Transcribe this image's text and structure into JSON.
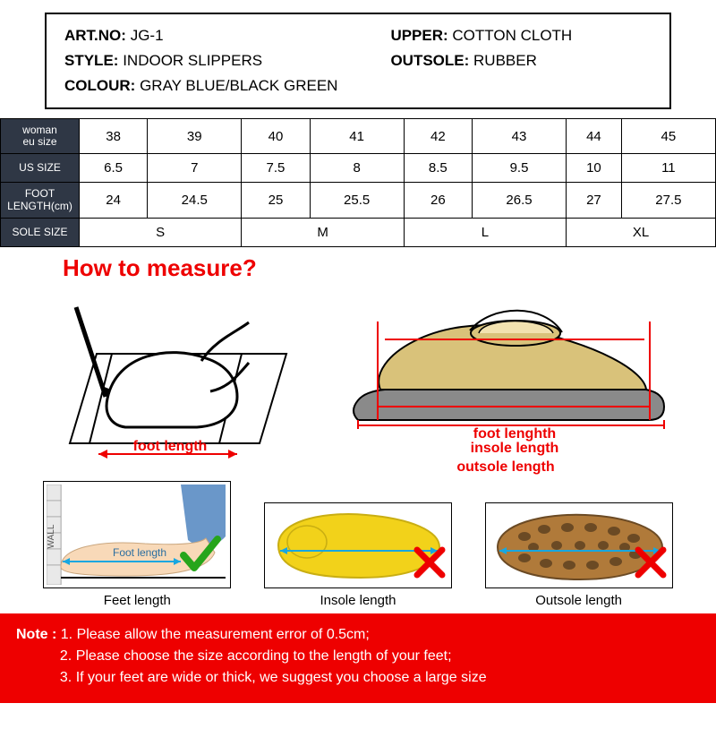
{
  "info": {
    "art_no_label": "ART.NO:",
    "art_no": "JG-1",
    "upper_label": "UPPER:",
    "upper": "COTTON CLOTH",
    "style_label": "STYLE:",
    "style": "INDOOR SLIPPERS",
    "outsole_label": "OUTSOLE:",
    "outsole": "RUBBER",
    "colour_label": "COLOUR:",
    "colour": "GRAY BLUE/BLACK GREEN"
  },
  "size_table": {
    "header_bg": "#2f3745",
    "header_color": "#ffffff",
    "rows": [
      {
        "label": "woman\neu size",
        "cells": [
          "38",
          "39",
          "40",
          "41",
          "42",
          "43",
          "44",
          "45"
        ]
      },
      {
        "label": "US SIZE",
        "cells": [
          "6.5",
          "7",
          "7.5",
          "8",
          "8.5",
          "9.5",
          "10",
          "11"
        ]
      },
      {
        "label": "FOOT\nLENGTH(cm)",
        "cells": [
          "24",
          "24.5",
          "25",
          "25.5",
          "26",
          "26.5",
          "27",
          "27.5"
        ]
      },
      {
        "label": "SOLE SIZE",
        "cells": [
          "S",
          "S",
          "M",
          "M",
          "L",
          "L",
          "XL",
          "XL"
        ],
        "merge": [
          2,
          2,
          2,
          2
        ]
      }
    ]
  },
  "how_title": "How to measure?",
  "diagram": {
    "foot_length_label": "foot length",
    "right_labels": [
      "foot lenghth",
      "insole length",
      "outsole length"
    ],
    "label_color": "#e00000",
    "outline_color": "#000000",
    "shoe_fill": "#d9c27a",
    "slipper_fill": "#8a8a8a",
    "arrow_width": 2
  },
  "bottom": {
    "wall_text": "WALL",
    "feet_label": "Feet length",
    "insole_label": "Insole length",
    "outsole_label": "Outsole length",
    "foot_annot": "Foot length",
    "insole_fill": "#f2d21a",
    "sole_fill": "#b07a3a",
    "sole_tread": "#6b4a24",
    "skin": "#f8d9b8",
    "pants": "#6a97c9",
    "check_color": "#26a51b",
    "x_color": "#e00000"
  },
  "note": {
    "title": "Note :",
    "l1": "1. Please allow the measurement error of 0.5cm;",
    "l2": "2. Please choose the size according to the length of your feet;",
    "l3": "3. If your feet are wide or thick, we suggest you choose a large size",
    "bg": "#e00000",
    "color": "#ffffff"
  }
}
